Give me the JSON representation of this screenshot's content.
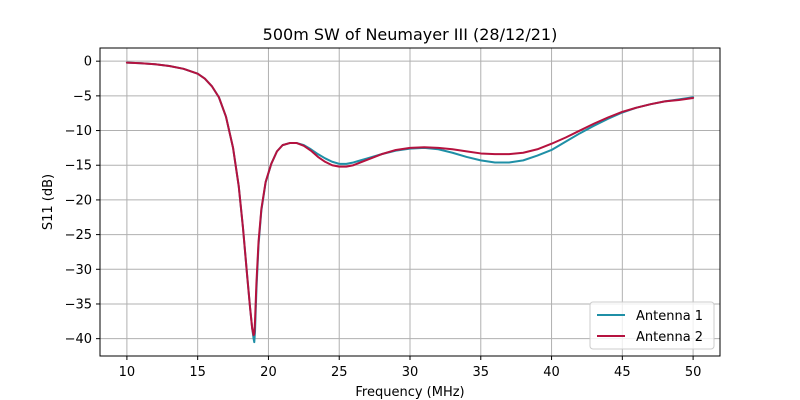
{
  "chart_data": {
    "type": "line",
    "title": "500m SW of Neumayer III (28/12/21)",
    "xlabel": "Frequency (MHz)",
    "ylabel": "S11 (dB)",
    "xlim": [
      8.1,
      51.9
    ],
    "ylim": [
      -42.5,
      1.9
    ],
    "xticks": [
      10,
      15,
      20,
      25,
      30,
      35,
      40,
      45,
      50
    ],
    "yticks": [
      0,
      -5,
      -10,
      -15,
      -20,
      -25,
      -30,
      -35,
      -40
    ],
    "grid": true,
    "legend_position": "lower-right",
    "series": [
      {
        "name": "Antenna 1",
        "color": "#1f8fa6",
        "x": [
          10,
          11,
          12,
          13,
          14,
          15,
          15.5,
          16,
          16.5,
          17,
          17.5,
          17.9,
          18.2,
          18.5,
          18.7,
          18.85,
          18.95,
          19.0,
          19.05,
          19.15,
          19.3,
          19.5,
          19.8,
          20.2,
          20.6,
          21.0,
          21.5,
          22.0,
          22.5,
          23.0,
          23.5,
          24.0,
          24.5,
          25.0,
          25.5,
          26.0,
          26.5,
          27.0,
          28.0,
          29.0,
          30.0,
          31.0,
          32.0,
          33.0,
          34.0,
          35.0,
          36.0,
          37.0,
          38.0,
          39.0,
          40.0,
          41.0,
          42.0,
          43.0,
          44.0,
          45.0,
          46.0,
          47.0,
          48.0,
          49.0,
          50.0
        ],
        "y": [
          -0.2,
          -0.3,
          -0.45,
          -0.7,
          -1.1,
          -1.8,
          -2.5,
          -3.6,
          -5.2,
          -8.0,
          -12.5,
          -18.0,
          -24.0,
          -31.0,
          -35.5,
          -38.5,
          -40.0,
          -40.5,
          -39.0,
          -33.0,
          -26.5,
          -21.5,
          -17.5,
          -14.8,
          -13.0,
          -12.1,
          -11.8,
          -11.8,
          -12.1,
          -12.7,
          -13.4,
          -14.0,
          -14.5,
          -14.8,
          -14.8,
          -14.6,
          -14.3,
          -14.0,
          -13.4,
          -12.9,
          -12.6,
          -12.5,
          -12.7,
          -13.2,
          -13.8,
          -14.3,
          -14.6,
          -14.6,
          -14.3,
          -13.6,
          -12.8,
          -11.6,
          -10.4,
          -9.3,
          -8.3,
          -7.4,
          -6.7,
          -6.2,
          -5.8,
          -5.5,
          -5.2
        ]
      },
      {
        "name": "Antenna 2",
        "color": "#b5123f",
        "x": [
          10,
          11,
          12,
          13,
          14,
          15,
          15.5,
          16,
          16.5,
          17,
          17.5,
          17.9,
          18.2,
          18.5,
          18.7,
          18.85,
          18.95,
          19.0,
          19.05,
          19.15,
          19.3,
          19.5,
          19.8,
          20.2,
          20.6,
          21.0,
          21.5,
          22.0,
          22.5,
          23.0,
          23.5,
          24.0,
          24.5,
          25.0,
          25.5,
          26.0,
          26.5,
          27.0,
          28.0,
          29.0,
          30.0,
          31.0,
          32.0,
          33.0,
          34.0,
          35.0,
          36.0,
          37.0,
          38.0,
          39.0,
          40.0,
          41.0,
          42.0,
          43.0,
          44.0,
          45.0,
          46.0,
          47.0,
          48.0,
          49.0,
          50.0
        ],
        "y": [
          -0.2,
          -0.3,
          -0.45,
          -0.7,
          -1.1,
          -1.8,
          -2.5,
          -3.6,
          -5.2,
          -8.0,
          -12.5,
          -18.0,
          -24.0,
          -31.0,
          -35.5,
          -38.5,
          -39.5,
          -39.3,
          -37.5,
          -32.0,
          -26.0,
          -21.3,
          -17.4,
          -14.8,
          -13.0,
          -12.1,
          -11.8,
          -11.8,
          -12.2,
          -12.9,
          -13.8,
          -14.5,
          -15.0,
          -15.2,
          -15.2,
          -15.0,
          -14.6,
          -14.2,
          -13.4,
          -12.8,
          -12.5,
          -12.4,
          -12.5,
          -12.7,
          -13.0,
          -13.3,
          -13.4,
          -13.4,
          -13.2,
          -12.7,
          -11.9,
          -11.0,
          -10.0,
          -9.0,
          -8.1,
          -7.3,
          -6.7,
          -6.2,
          -5.8,
          -5.6,
          -5.3
        ]
      }
    ]
  }
}
